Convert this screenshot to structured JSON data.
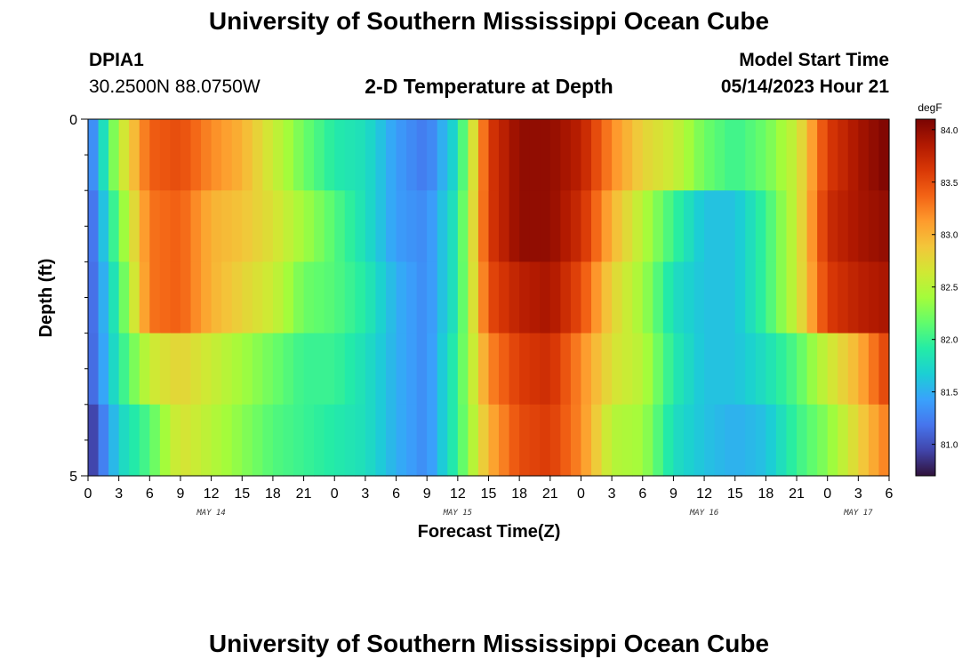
{
  "header": {
    "title": "University of Southern Mississippi Ocean Cube",
    "station": "DPIA1",
    "coords": "30.2500N  88.0750W",
    "subtitle": "2-D Temperature at Depth",
    "model_start_label": "Model Start Time",
    "model_start_value": "05/14/2023 Hour 21"
  },
  "footer": {
    "title": "University of Southern Mississippi Ocean Cube"
  },
  "colors": {
    "colormap": [
      "#30123b",
      "#4145ab",
      "#4675ed",
      "#39a2fc",
      "#1bcfd4",
      "#24eca6",
      "#61fc6c",
      "#a4fc3b",
      "#d1e834",
      "#f3c63a",
      "#fe9b2d",
      "#f36315",
      "#d93806",
      "#b11901",
      "#7a0402"
    ]
  },
  "chart_data": {
    "type": "heatmap",
    "xlabel": "Forecast Time(Z)",
    "ylabel": "Depth (ft)",
    "x_ticks": [
      "0",
      "3",
      "6",
      "9",
      "12",
      "15",
      "18",
      "21",
      "0",
      "3",
      "6",
      "9",
      "12",
      "15",
      "18",
      "21",
      "0",
      "3",
      "6",
      "9",
      "12",
      "15",
      "18",
      "21",
      "0",
      "3",
      "6"
    ],
    "date_labels": [
      {
        "label": "MAY 14",
        "hour": 12
      },
      {
        "label": "MAY 15",
        "hour": 36
      },
      {
        "label": "MAY 16",
        "hour": 60
      },
      {
        "label": "MAY 17",
        "hour": 75
      }
    ],
    "x_range_hours": [
      0,
      78
    ],
    "y_tick_labels": [
      "0",
      "5"
    ],
    "ylim": [
      0,
      5
    ],
    "depth_levels": [
      0,
      1,
      2,
      3,
      4
    ],
    "colorbar": {
      "unit": "degF",
      "min": 80.7,
      "max": 84.1,
      "tick_labels": [
        "84.0",
        "83.5",
        "83.0",
        "82.5",
        "82.0",
        "81.5",
        "81.0"
      ],
      "tick_values": [
        84.0,
        83.5,
        83.0,
        82.5,
        82.0,
        81.5,
        81.0
      ]
    },
    "keyframes_hours": [
      0,
      3,
      6,
      9,
      12,
      15,
      18,
      21,
      24,
      27,
      30,
      33,
      36,
      39,
      42,
      45,
      48,
      51,
      54,
      57,
      60,
      63,
      66,
      69,
      72,
      75,
      78
    ],
    "values": [
      [
        81.1,
        82.5,
        83.4,
        83.5,
        83.2,
        83.0,
        82.6,
        82.2,
        81.9,
        81.8,
        81.4,
        81.2,
        81.8,
        83.6,
        84.0,
        84.0,
        83.8,
        83.2,
        82.8,
        82.6,
        82.2,
        82.0,
        82.2,
        82.6,
        83.6,
        83.9,
        84.1
      ],
      [
        81.0,
        82.2,
        83.3,
        83.4,
        83.0,
        82.9,
        82.7,
        82.4,
        82.1,
        81.8,
        81.4,
        81.3,
        81.9,
        83.6,
        84.0,
        84.0,
        83.7,
        83.0,
        82.5,
        82.0,
        81.6,
        81.6,
        82.0,
        82.6,
        83.7,
        83.9,
        84.0
      ],
      [
        81.0,
        82.0,
        83.3,
        83.4,
        83.0,
        82.8,
        82.6,
        82.2,
        82.1,
        81.9,
        81.5,
        81.3,
        81.9,
        83.5,
        83.8,
        83.9,
        83.5,
        82.8,
        82.4,
        81.8,
        81.6,
        81.6,
        82.0,
        82.6,
        83.6,
        83.8,
        83.9
      ],
      [
        81.0,
        81.9,
        82.6,
        82.8,
        82.6,
        82.4,
        82.2,
        82.0,
        82.0,
        81.8,
        81.5,
        81.3,
        82.0,
        83.2,
        83.6,
        83.7,
        83.2,
        82.7,
        82.5,
        81.9,
        81.6,
        81.6,
        81.8,
        82.1,
        82.6,
        83.0,
        83.6
      ],
      [
        80.8,
        81.7,
        82.1,
        82.7,
        82.5,
        82.3,
        82.1,
        82.0,
        81.9,
        81.8,
        81.5,
        81.3,
        82.0,
        83.0,
        83.5,
        83.6,
        83.2,
        82.5,
        82.4,
        81.8,
        81.6,
        81.5,
        81.6,
        82.0,
        82.3,
        82.8,
        83.3
      ]
    ]
  }
}
